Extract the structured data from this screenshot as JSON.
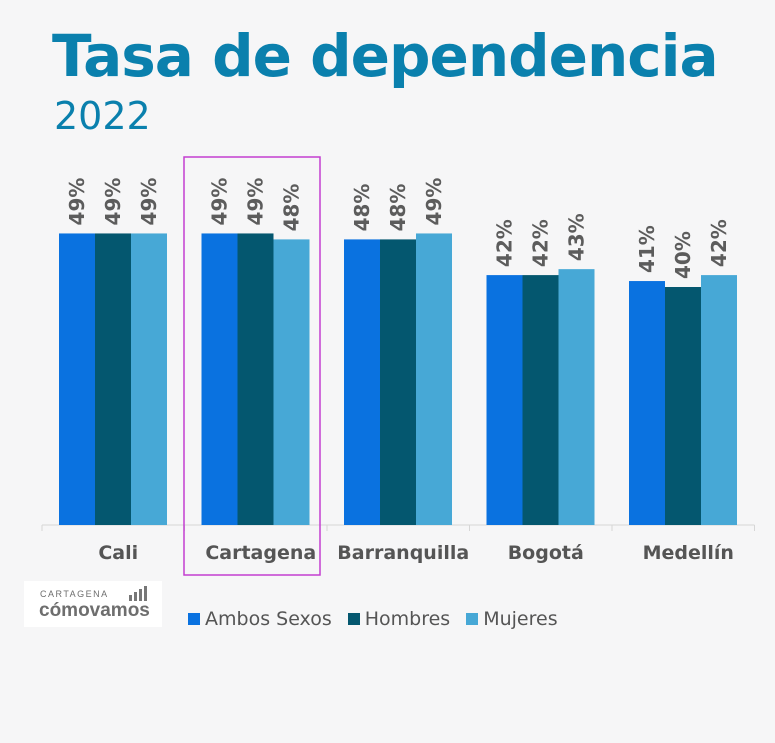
{
  "title": "Tasa de dependencia",
  "subtitle": "2022",
  "logo": {
    "top": "CARTAGENA",
    "main": "cómovamos"
  },
  "colors": {
    "title": "#0a80ad",
    "highlight": "#c33fd1"
  },
  "chart_data": {
    "type": "bar",
    "categories": [
      "Cali",
      "Cartagena",
      "Barranquilla",
      "Bogotá",
      "Medellín"
    ],
    "highlight_category": "Cartagena",
    "ylim": [
      0,
      100
    ],
    "series": [
      {
        "name": "Ambos Sexos",
        "color": "#0a72e0",
        "values": [
          49,
          49,
          48,
          42,
          41
        ],
        "labels": [
          "49%",
          "49%",
          "48%",
          "42%",
          "41%"
        ]
      },
      {
        "name": "Hombres",
        "color": "#04576f",
        "values": [
          49,
          49,
          48,
          42,
          40
        ],
        "labels": [
          "49%",
          "49%",
          "48%",
          "42%",
          "40%"
        ]
      },
      {
        "name": "Mujeres",
        "color": "#47a8d6",
        "values": [
          49,
          48,
          49,
          43,
          42
        ],
        "labels": [
          "49%",
          "48%",
          "49%",
          "43%",
          "42%"
        ]
      }
    ],
    "legend_position": "bottom"
  }
}
